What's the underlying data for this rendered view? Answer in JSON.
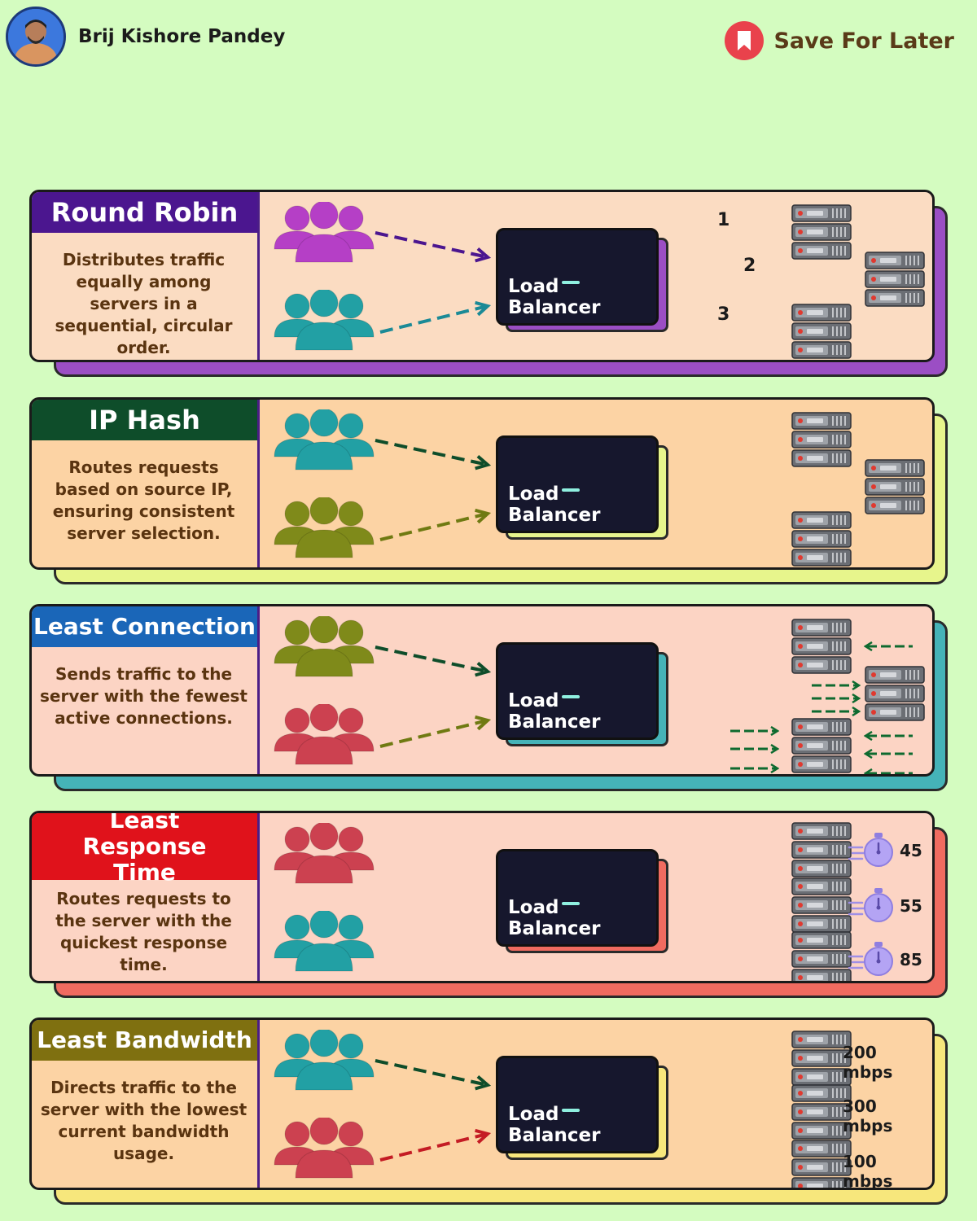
{
  "header": {
    "author": "Brij Kishore Pandey",
    "save_label": "Save For Later",
    "save_color": "#e9424c"
  },
  "load_balancer_label": "Load Balancer",
  "algorithms": [
    {
      "title": "Round Robin",
      "description": "Distributes traffic equally among servers in a sequential, circular order.",
      "title_color": "#4b168f",
      "card_color": "#fbdcc2",
      "shadow_color": "#9b4ec4",
      "clients": [
        "#b53fc6",
        "#22a0a4"
      ],
      "arrows": [
        "#4b168f",
        "#1b8a96"
      ],
      "server_order": [
        "1",
        "2",
        "3"
      ]
    },
    {
      "title": "IP Hash",
      "description": "Routes requests based on source IP, ensuring consistent server selection.",
      "title_color": "#0e4d2a",
      "card_color": "#fcd3a4",
      "shadow_color": "#e7f58c",
      "clients": [
        "#22a0a4",
        "#7f8a1a"
      ],
      "arrows": [
        "#0e4d2a",
        "#6f7a12"
      ]
    },
    {
      "title": "Least Connection",
      "description": "Sends traffic to the server with the fewest active connections.",
      "title_color": "#1a66b8",
      "card_color": "#fcd4c4",
      "shadow_color": "#45b3b8",
      "clients": [
        "#7f8a1a",
        "#cc4150"
      ],
      "arrows": [
        "#0e4d2a",
        "#6f7a12"
      ]
    },
    {
      "title": "Least Response Time",
      "description": "Routes requests to the server with the quickest response time.",
      "title_color": "#e0121b",
      "card_color": "#fcd4c4",
      "shadow_color": "#f06b60",
      "clients": [
        "#cc4150",
        "#22a0a4"
      ],
      "response_times": [
        "45",
        "55",
        "85"
      ]
    },
    {
      "title": "Least Bandwidth",
      "description": "Directs traffic to the server with the lowest current bandwidth usage.",
      "title_color": "#7f7010",
      "card_color": "#fcd3a4",
      "shadow_color": "#f7e77c",
      "clients": [
        "#22a0a4",
        "#cc4150"
      ],
      "arrows": [
        "#0e4d2a",
        "#c41c24"
      ],
      "bandwidths": [
        "200 mbps",
        "300 mbps",
        "100 mbps"
      ]
    }
  ]
}
